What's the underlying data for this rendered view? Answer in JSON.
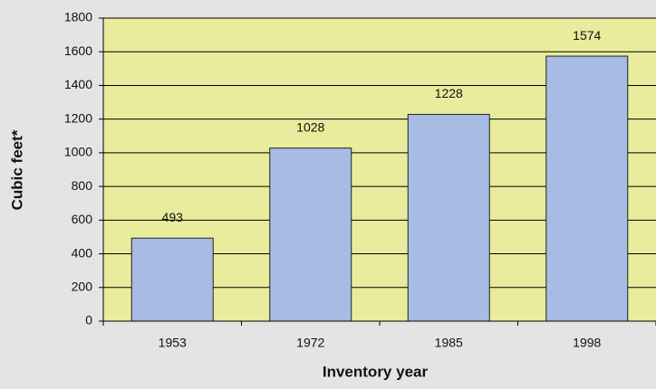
{
  "chart_data": {
    "type": "bar",
    "x_label": "Inventory year",
    "y_label": "Cubic feet*",
    "categories": [
      "1953",
      "1972",
      "1985",
      "1998"
    ],
    "values": [
      493,
      1028,
      1228,
      1574
    ],
    "color": "#a7bbe3",
    "plot_background": "#e8ec9c",
    "ylim": [
      0,
      1800
    ],
    "yticks": [
      0,
      200,
      400,
      600,
      800,
      1000,
      1200,
      1400,
      1600,
      1800
    ],
    "grid": true
  }
}
